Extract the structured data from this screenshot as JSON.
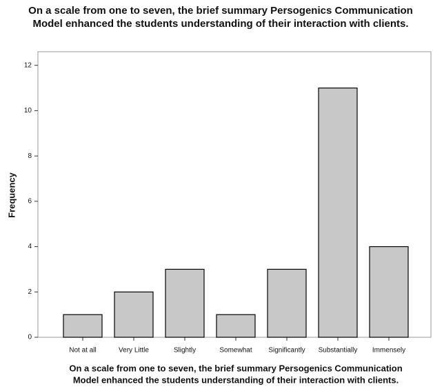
{
  "chart_data": {
    "type": "bar",
    "title": [
      "On a scale from one to seven, the brief summary Persogenics Communication",
      "Model enhanced the students understanding of their interaction with clients."
    ],
    "x_label": [
      "On a scale from one to seven, the brief summary Persogenics Communication",
      "Model enhanced the students understanding of their interaction with clients."
    ],
    "y_label": "Frequency",
    "categories": [
      "Not at all",
      "Very Little",
      "Slightly",
      "Somewhat",
      "Significantly",
      "Substantially",
      "Immensely"
    ],
    "values": [
      1,
      2,
      3,
      1,
      3,
      11,
      4
    ],
    "color": "#c8c8c8",
    "ylim": [
      0,
      12.6
    ],
    "yticks": [
      0,
      2,
      4,
      6,
      8,
      10,
      12
    ]
  }
}
